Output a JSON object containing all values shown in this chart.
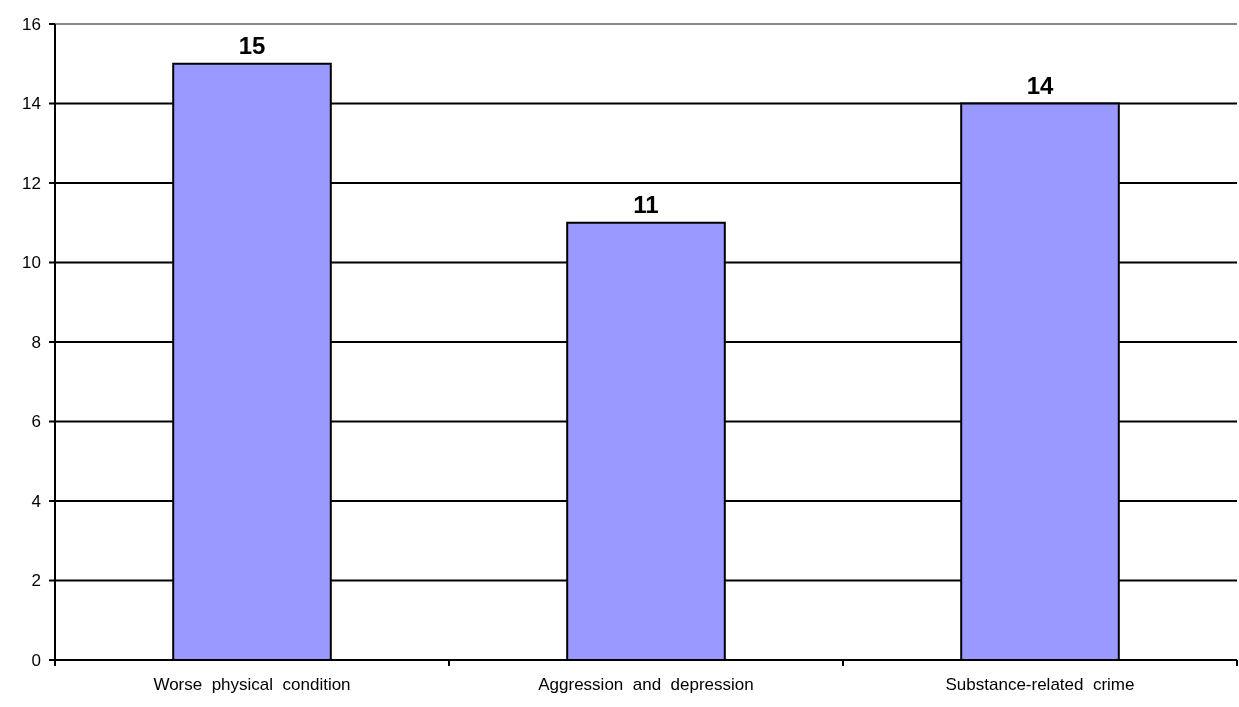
{
  "chart_data": {
    "type": "bar",
    "categories": [
      "Worse  physical  condition",
      "Aggression  and  depression",
      "Substance-related  crime"
    ],
    "values": [
      15,
      11,
      14
    ],
    "color": "#9999ff",
    "ylim": [
      0,
      16
    ],
    "yticks": [
      0,
      2,
      4,
      6,
      8,
      10,
      12,
      14,
      16
    ],
    "grid": "y",
    "data_labels": true
  }
}
